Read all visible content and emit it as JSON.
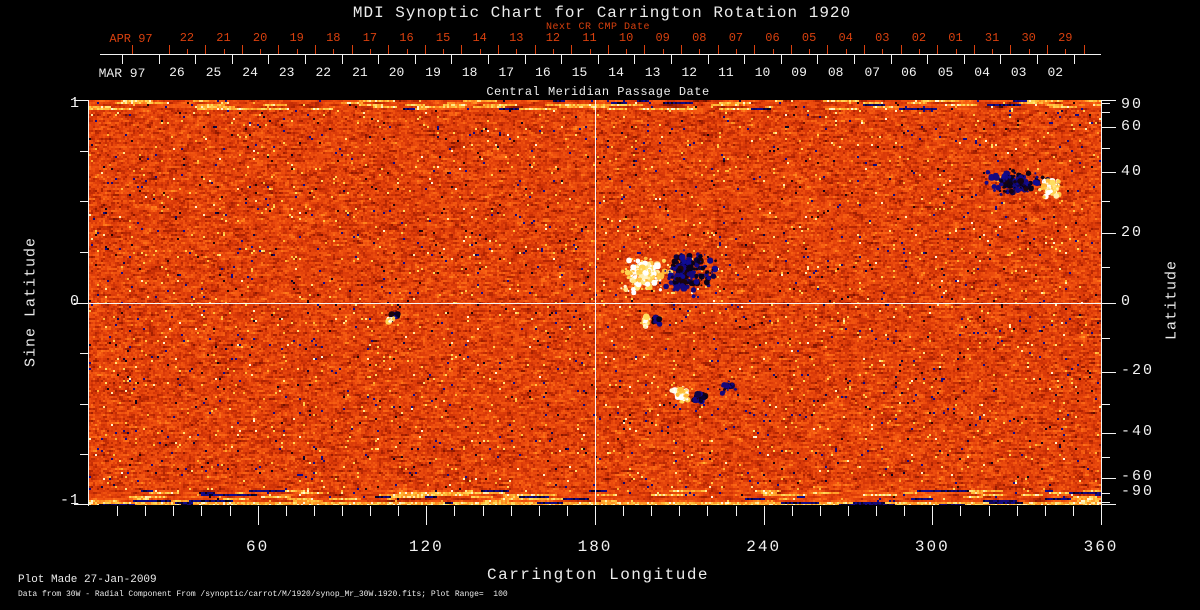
{
  "title": "MDI Synoptic Chart for Carrington Rotation 1920",
  "colors": {
    "accent_red": "#d8400e",
    "text_white": "#ececec",
    "axis_white": "#f2f2f2"
  },
  "top_axes": {
    "next_cr_label": "Next CR CMP Date",
    "next_month_label": "APR 97",
    "next_days": [
      "22",
      "21",
      "20",
      "19",
      "18",
      "17",
      "16",
      "15",
      "14",
      "13",
      "12",
      "11",
      "10",
      "09",
      "08",
      "07",
      "06",
      "05",
      "04",
      "03",
      "02",
      "01",
      "31",
      "30",
      "29"
    ],
    "cmp_month_label": "MAR 97",
    "cmp_days": [
      "26",
      "25",
      "24",
      "23",
      "22",
      "21",
      "20",
      "19",
      "18",
      "17",
      "16",
      "15",
      "14",
      "13",
      "12",
      "11",
      "10",
      "09",
      "08",
      "07",
      "06",
      "05",
      "04",
      "03",
      "02"
    ],
    "axis_title": "Central Meridian Passage Date"
  },
  "y_axis_left": {
    "title": "Sine Latitude",
    "tick_labels": [
      "1",
      "0",
      "-1"
    ],
    "tick_values": [
      1,
      0,
      -1
    ],
    "minor_step": 0.25
  },
  "y_axis_right": {
    "title": "Latitude",
    "major_ticks": [
      90,
      60,
      40,
      20,
      0,
      -20,
      -40,
      -60,
      -90
    ],
    "minor_ticks": [
      80,
      70,
      50,
      30,
      10,
      -10,
      -30,
      -50,
      -70,
      -80
    ]
  },
  "x_axis_bottom": {
    "title": "Carrington Longitude",
    "major_ticks": [
      60,
      120,
      180,
      240,
      300,
      360
    ],
    "minor_step": 10,
    "range": [
      0,
      360
    ]
  },
  "footer": {
    "line1": "Plot Made 27-Jan-2009",
    "line2": "Data from 30W - Radial Component From /synoptic/carrot/M/1920/synop_Mr_30W.1920.fits; Plot Range=  100"
  },
  "chart_data": {
    "type": "heatmap",
    "title": "MDI Synoptic Chart for Carrington Rotation 1920",
    "xlabel": "Carrington Longitude",
    "ylabel_left": "Sine Latitude",
    "ylabel_right": "Latitude",
    "x_range": [
      0,
      360
    ],
    "y_range_sine_latitude": [
      -1,
      1
    ],
    "plot_range_gauss": 100,
    "colormap": "magnetic field: strong negative = blue/black, quiet = red/orange, strong positive = yellow/white",
    "crosshair": {
      "longitude": 180,
      "sine_latitude": 0
    },
    "grid": "white crosshair at longitude 180 and sine-latitude 0",
    "active_regions": [
      {
        "name": "AR-main-bipole",
        "longitude": 204,
        "latitude": 8,
        "desc": "large bipolar region: white (positive) patch west, black/blue (negative) patch east"
      },
      {
        "name": "AR-main-equator-pair",
        "longitude": 200,
        "latitude": -5,
        "desc": "small white+black pair just south of equator"
      },
      {
        "name": "AR-south",
        "longitude": 214,
        "latitude": -27,
        "desc": "small bipole, white+black, with detached blue patch east"
      },
      {
        "name": "AR-northeast",
        "longitude": 333,
        "latitude": 36,
        "desc": "dispersed negative (blue/black) plage with positive (white/yellow) patch on its east edge"
      },
      {
        "name": "AR-west-small",
        "longitude": 108,
        "latitude": -4,
        "desc": "tiny bipole, black speck over white speck"
      }
    ],
    "spots": [
      {
        "lon": 197.5,
        "lat": 7.5,
        "rlon": 8.0,
        "rsin": 0.08,
        "pol": 1,
        "n": 170
      },
      {
        "lon": 211.5,
        "lat": 8.5,
        "rlon": 6.0,
        "rsin": 0.1,
        "pol": -1,
        "n": 180
      },
      {
        "lon": 219.0,
        "lat": 9.0,
        "rlon": 5.5,
        "rsin": 0.1,
        "pol": -1,
        "n": 40
      },
      {
        "lon": 198.0,
        "lat": -5.5,
        "rlon": 2.2,
        "rsin": 0.03,
        "pol": 1,
        "n": 20
      },
      {
        "lon": 202.0,
        "lat": -4.5,
        "rlon": 2.2,
        "rsin": 0.03,
        "pol": -1,
        "n": 20
      },
      {
        "lon": 211.0,
        "lat": -27.0,
        "rlon": 3.2,
        "rsin": 0.035,
        "pol": 1,
        "n": 45
      },
      {
        "lon": 217.0,
        "lat": -28.0,
        "rlon": 2.5,
        "rsin": 0.03,
        "pol": -1,
        "n": 28
      },
      {
        "lon": 227.0,
        "lat": -25.0,
        "rlon": 2.6,
        "rsin": 0.032,
        "pol": -1,
        "n": 26
      },
      {
        "lon": 330.0,
        "lat": 36.5,
        "rlon": 10.0,
        "rsin": 0.058,
        "pol": -1,
        "n": 130
      },
      {
        "lon": 342.5,
        "lat": 35.0,
        "rlon": 4.0,
        "rsin": 0.045,
        "pol": 1,
        "n": 70
      },
      {
        "lon": 108.5,
        "lat": -3.5,
        "rlon": 1.5,
        "rsin": 0.02,
        "pol": -1,
        "n": 12
      },
      {
        "lon": 107.5,
        "lat": -5.0,
        "rlon": 1.4,
        "rsin": 0.02,
        "pol": 1,
        "n": 10
      }
    ],
    "polar_streaks": "horizontally streaked field near both poles; strong blue negative streaks and a bright yellow strip along the south edge"
  }
}
